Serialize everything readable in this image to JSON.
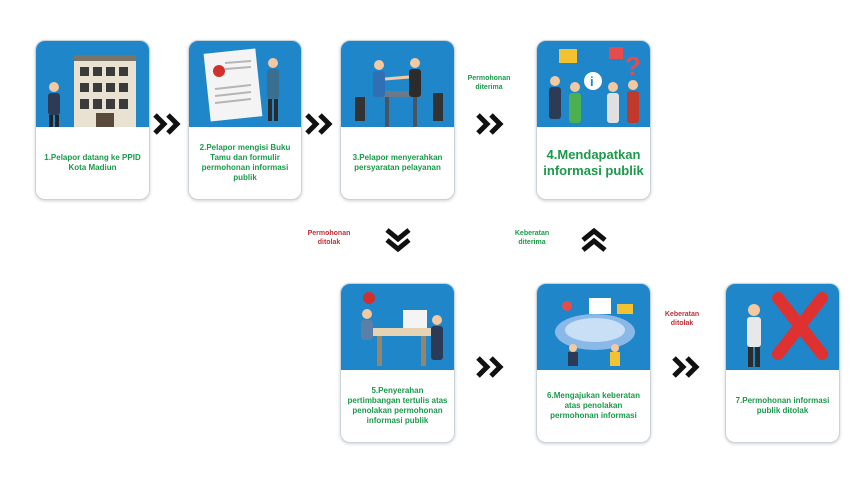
{
  "steps": [
    {
      "id": 1,
      "text": "1.Pelapor datang ke PPID Kota Madiun"
    },
    {
      "id": 2,
      "text": "2.Pelapor mengisi Buku Tamu dan formulir permohonan informasi publik"
    },
    {
      "id": 3,
      "text": "3.Pelapor menyerahkan persyaratan pelayanan"
    },
    {
      "id": 4,
      "text": "4.Mendapatkan informasi publik"
    },
    {
      "id": 5,
      "text": "5.Penyerahan pertimbangan tertulis atas penolakan permohonan informasi publik"
    },
    {
      "id": 6,
      "text": "6.Mengajukan keberatan atas penolakan permohonan informasi"
    },
    {
      "id": 7,
      "text": "7.Permohonan informasi publik ditolak"
    }
  ],
  "labels": {
    "accepted": "Permohonan diterima",
    "rejected": "Permohonan ditolak",
    "objection_accepted": "Keberatan diterima",
    "objection_rejected": "Keberatan ditolak"
  },
  "colors": {
    "card_blue": "#1f86c9",
    "caption_green": "#1a9a4a",
    "label_red": "#c0303a",
    "arrow": "#111111"
  }
}
